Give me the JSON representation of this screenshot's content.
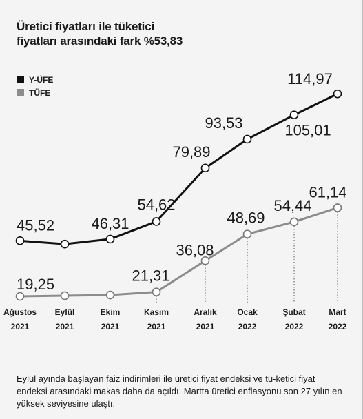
{
  "title": "Üretici fiyatları ile tüketici\nfiyatları arasındaki fark %53,83",
  "caption": "Eylül ayında başlayan faiz indirimleri ile üretici fiyat endeksi ve tü-ketici fiyat endeksi arasındaki makas daha da açıldı. Martta üretici enflasyonu son 27 yılın en yüksek seviyesine ulaştı.",
  "colors": {
    "yufe": "#111111",
    "tufe": "#8c8c8c"
  },
  "chart_data": {
    "type": "line",
    "title": "Üretici fiyatları ile tüketici fiyatları arasındaki fark %53,83",
    "categories": [
      [
        "Ağustos",
        "2021"
      ],
      [
        "Eylül",
        "2021"
      ],
      [
        "Ekim",
        "2021"
      ],
      [
        "Kasım",
        "2021"
      ],
      [
        "Aralık",
        "2021"
      ],
      [
        "Ocak",
        "2022"
      ],
      [
        "Şubat",
        "2022"
      ],
      [
        "Mart",
        "2022"
      ]
    ],
    "series": [
      {
        "name": "Y-ÜFE",
        "values": [
          45.52,
          43.96,
          46.31,
          54.62,
          79.89,
          93.53,
          105.01,
          114.97
        ],
        "labels": [
          "45,52",
          "",
          "46,31",
          "54,62",
          "79,89",
          "93,53",
          "105,01",
          "114,97"
        ]
      },
      {
        "name": "TÜFE",
        "values": [
          19.25,
          19.58,
          19.89,
          21.31,
          36.08,
          48.69,
          54.44,
          61.14
        ],
        "labels": [
          "19,25",
          "",
          "",
          "21,31",
          "36,08",
          "48,69",
          "54,44",
          "61,14"
        ]
      }
    ],
    "xlabel": "",
    "ylabel": "",
    "ylim": [
      0,
      125
    ],
    "grid": false,
    "legend": "top-left"
  }
}
